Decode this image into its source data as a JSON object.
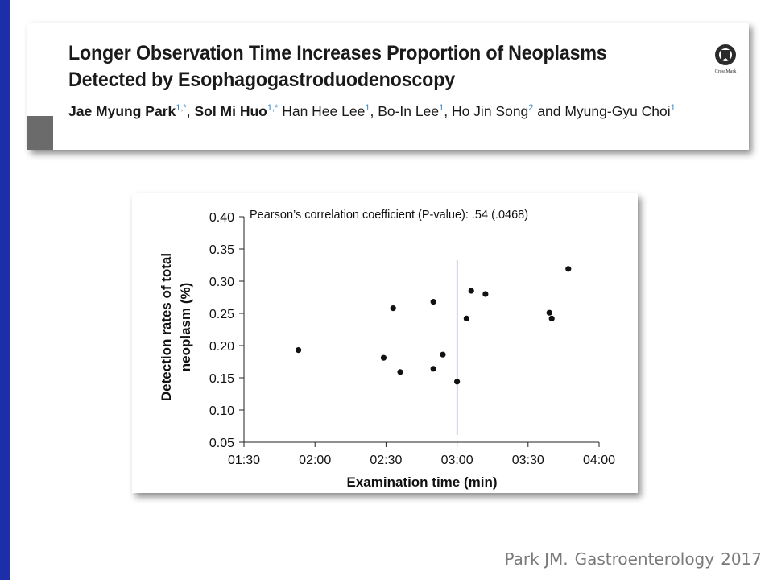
{
  "paper": {
    "title_line1": "Longer Observation Time Increases Proportion of Neoplasms",
    "title_line2": "Detected by Esophagogastroduodenoscopy",
    "authors": [
      {
        "name": "Jae Myung Park",
        "bold": true,
        "sup": "1,*",
        "sep": ", "
      },
      {
        "name": "Sol Mi Huo",
        "bold": true,
        "sup": "1,*",
        "sep": " "
      },
      {
        "name": "Han Hee Lee",
        "bold": false,
        "sup": "1",
        "sep": ", "
      },
      {
        "name": "Bo-In Lee",
        "bold": false,
        "sup": "1",
        "sep": ", "
      },
      {
        "name": "Ho Jin Song",
        "bold": false,
        "sup": "2",
        "sep": " and "
      },
      {
        "name": "Myung-Gyu Choi",
        "bold": false,
        "sup": "1",
        "sep": ""
      }
    ],
    "crossmark_label": "CrossMark"
  },
  "citation": {
    "author": "Park JM.",
    "journal": "Gastroenterology",
    "year": "2017"
  },
  "colors": {
    "left_bar": "#1d2fa8",
    "points": "#111111",
    "reference_line": "#5b6fb3",
    "superscript": "#3a87c8"
  },
  "chart_data": {
    "type": "scatter",
    "annotation": "Pearson’s correlation coefficient (P-value): .54 (.0468)",
    "xlabel": "Examination time (min)",
    "ylabel_line1": "Detection rates of total",
    "ylabel_line2": "neoplasm (%)",
    "x_unit": "minutes",
    "xlim": [
      90,
      240
    ],
    "ylim": [
      0.05,
      0.4
    ],
    "x_ticks": [
      {
        "value": 90,
        "label": "01:30"
      },
      {
        "value": 120,
        "label": "02:00"
      },
      {
        "value": 150,
        "label": "02:30"
      },
      {
        "value": 180,
        "label": "03:00"
      },
      {
        "value": 210,
        "label": "03:30"
      },
      {
        "value": 240,
        "label": "04:00"
      }
    ],
    "y_ticks": [
      {
        "value": 0.05,
        "label": "0.05"
      },
      {
        "value": 0.1,
        "label": "0.10"
      },
      {
        "value": 0.15,
        "label": "0.15"
      },
      {
        "value": 0.2,
        "label": "0.20"
      },
      {
        "value": 0.25,
        "label": "0.25"
      },
      {
        "value": 0.3,
        "label": "0.30"
      },
      {
        "value": 0.35,
        "label": "0.35"
      },
      {
        "value": 0.4,
        "label": "0.40"
      }
    ],
    "reference_line_x": 180,
    "points": [
      {
        "x": 113,
        "y": 0.193
      },
      {
        "x": 149,
        "y": 0.181
      },
      {
        "x": 153,
        "y": 0.258
      },
      {
        "x": 156,
        "y": 0.159
      },
      {
        "x": 170,
        "y": 0.164
      },
      {
        "x": 170,
        "y": 0.268
      },
      {
        "x": 174,
        "y": 0.186
      },
      {
        "x": 180,
        "y": 0.144
      },
      {
        "x": 184,
        "y": 0.242
      },
      {
        "x": 186,
        "y": 0.285
      },
      {
        "x": 192,
        "y": 0.28
      },
      {
        "x": 219,
        "y": 0.251
      },
      {
        "x": 220,
        "y": 0.242
      },
      {
        "x": 227,
        "y": 0.319
      }
    ],
    "grid": false,
    "legend": "none"
  }
}
